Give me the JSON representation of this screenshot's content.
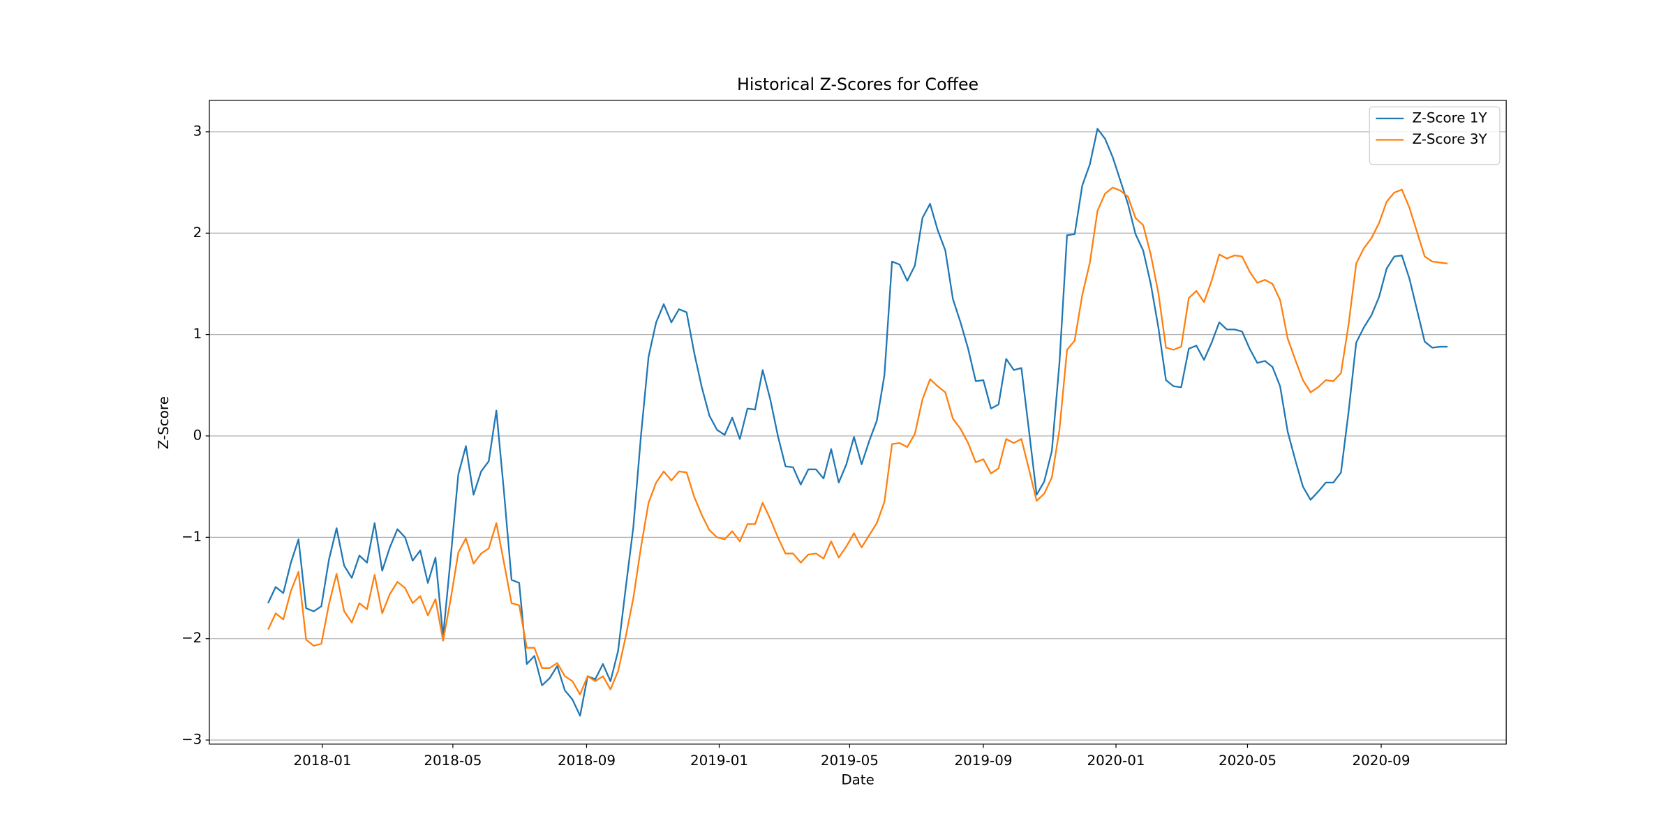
{
  "chart_data": {
    "type": "line",
    "title": "Historical Z-Scores for Coffee",
    "x_label": "Date",
    "y_label": "Z-Score",
    "x": [
      "2017-11-12",
      "2017-11-19",
      "2017-11-26",
      "2017-12-03",
      "2017-12-10",
      "2017-12-17",
      "2017-12-24",
      "2017-12-31",
      "2018-01-07",
      "2018-01-14",
      "2018-01-21",
      "2018-01-28",
      "2018-02-04",
      "2018-02-11",
      "2018-02-18",
      "2018-02-25",
      "2018-03-04",
      "2018-03-11",
      "2018-03-18",
      "2018-03-25",
      "2018-04-01",
      "2018-04-08",
      "2018-04-15",
      "2018-04-22",
      "2018-04-29",
      "2018-05-06",
      "2018-05-13",
      "2018-05-20",
      "2018-05-27",
      "2018-06-03",
      "2018-06-10",
      "2018-06-17",
      "2018-06-24",
      "2018-07-01",
      "2018-07-08",
      "2018-07-15",
      "2018-07-22",
      "2018-07-29",
      "2018-08-05",
      "2018-08-12",
      "2018-08-19",
      "2018-08-26",
      "2018-09-02",
      "2018-09-09",
      "2018-09-16",
      "2018-09-23",
      "2018-09-30",
      "2018-10-07",
      "2018-10-14",
      "2018-10-21",
      "2018-10-28",
      "2018-11-04",
      "2018-11-11",
      "2018-11-18",
      "2018-11-25",
      "2018-12-02",
      "2018-12-09",
      "2018-12-16",
      "2018-12-23",
      "2018-12-30",
      "2019-01-06",
      "2019-01-13",
      "2019-01-20",
      "2019-01-27",
      "2019-02-03",
      "2019-02-10",
      "2019-02-17",
      "2019-02-24",
      "2019-03-03",
      "2019-03-10",
      "2019-03-17",
      "2019-03-24",
      "2019-03-31",
      "2019-04-07",
      "2019-04-14",
      "2019-04-21",
      "2019-04-28",
      "2019-05-05",
      "2019-05-12",
      "2019-05-19",
      "2019-05-26",
      "2019-06-02",
      "2019-06-09",
      "2019-06-16",
      "2019-06-23",
      "2019-06-30",
      "2019-07-07",
      "2019-07-14",
      "2019-07-21",
      "2019-07-28",
      "2019-08-04",
      "2019-08-11",
      "2019-08-18",
      "2019-08-25",
      "2019-09-01",
      "2019-09-08",
      "2019-09-15",
      "2019-09-22",
      "2019-09-29",
      "2019-10-06",
      "2019-10-13",
      "2019-10-20",
      "2019-10-27",
      "2019-11-03",
      "2019-11-10",
      "2019-11-17",
      "2019-11-24",
      "2019-12-01",
      "2019-12-08",
      "2019-12-15",
      "2019-12-22",
      "2019-12-29",
      "2020-01-05",
      "2020-01-12",
      "2020-01-19",
      "2020-01-26",
      "2020-02-02",
      "2020-02-09",
      "2020-02-16",
      "2020-02-23",
      "2020-03-01",
      "2020-03-08",
      "2020-03-15",
      "2020-03-22",
      "2020-03-29",
      "2020-04-05",
      "2020-04-12",
      "2020-04-19",
      "2020-04-26",
      "2020-05-03",
      "2020-05-10",
      "2020-05-17",
      "2020-05-24",
      "2020-05-31",
      "2020-06-07",
      "2020-06-14",
      "2020-06-21",
      "2020-06-28",
      "2020-07-05",
      "2020-07-12",
      "2020-07-19",
      "2020-07-26",
      "2020-08-02",
      "2020-08-09",
      "2020-08-16",
      "2020-08-23",
      "2020-08-30",
      "2020-09-06",
      "2020-09-13",
      "2020-09-20",
      "2020-09-27",
      "2020-10-04",
      "2020-10-11",
      "2020-10-18",
      "2020-10-25",
      "2020-11-01"
    ],
    "series": [
      {
        "name": "Z-Score 1Y",
        "color": "#1f77b4",
        "values": [
          -1.65,
          -1.49,
          -1.55,
          -1.25,
          -1.02,
          -1.7,
          -1.73,
          -1.68,
          -1.22,
          -0.91,
          -1.28,
          -1.4,
          -1.18,
          -1.25,
          -0.86,
          -1.33,
          -1.1,
          -0.92,
          -1.0,
          -1.23,
          -1.13,
          -1.45,
          -1.2,
          -1.98,
          -1.2,
          -0.38,
          -0.1,
          -0.58,
          -0.35,
          -0.25,
          0.25,
          -0.55,
          -1.42,
          -1.45,
          -2.25,
          -2.17,
          -2.46,
          -2.39,
          -2.27,
          -2.51,
          -2.6,
          -2.76,
          -2.37,
          -2.4,
          -2.25,
          -2.42,
          -2.12,
          -1.5,
          -0.9,
          0.0,
          0.78,
          1.12,
          1.3,
          1.12,
          1.25,
          1.22,
          0.82,
          0.48,
          0.2,
          0.06,
          0.01,
          0.18,
          -0.03,
          0.27,
          0.26,
          0.65,
          0.36,
          0.0,
          -0.3,
          -0.31,
          -0.48,
          -0.33,
          -0.33,
          -0.42,
          -0.13,
          -0.46,
          -0.28,
          -0.01,
          -0.28,
          -0.05,
          0.15,
          0.6,
          1.72,
          1.69,
          1.53,
          1.68,
          2.15,
          2.29,
          2.03,
          1.83,
          1.35,
          1.12,
          0.86,
          0.54,
          0.55,
          0.27,
          0.31,
          0.76,
          0.65,
          0.67,
          0.05,
          -0.58,
          -0.45,
          -0.15,
          0.72,
          1.98,
          1.99,
          2.47,
          2.68,
          3.03,
          2.93,
          2.75,
          2.52,
          2.29,
          1.99,
          1.83,
          1.5,
          1.07,
          0.55,
          0.49,
          0.48,
          0.86,
          0.89,
          0.75,
          0.92,
          1.12,
          1.05,
          1.05,
          1.03,
          0.86,
          0.72,
          0.74,
          0.68,
          0.49,
          0.04,
          -0.24,
          -0.5,
          -0.63,
          -0.55,
          -0.46,
          -0.46,
          -0.36,
          0.24,
          0.92,
          1.07,
          1.19,
          1.37,
          1.65,
          1.77,
          1.78,
          1.55,
          1.24,
          0.93,
          0.87,
          0.88,
          0.88
        ]
      },
      {
        "name": "Z-Score 3Y",
        "color": "#ff7f0e",
        "values": [
          -1.91,
          -1.75,
          -1.81,
          -1.53,
          -1.34,
          -2.01,
          -2.07,
          -2.05,
          -1.66,
          -1.36,
          -1.73,
          -1.84,
          -1.65,
          -1.71,
          -1.37,
          -1.75,
          -1.56,
          -1.44,
          -1.5,
          -1.65,
          -1.58,
          -1.77,
          -1.61,
          -2.02,
          -1.61,
          -1.15,
          -1.01,
          -1.26,
          -1.16,
          -1.11,
          -0.86,
          -1.25,
          -1.65,
          -1.67,
          -2.09,
          -2.09,
          -2.29,
          -2.29,
          -2.24,
          -2.37,
          -2.42,
          -2.55,
          -2.37,
          -2.42,
          -2.37,
          -2.5,
          -2.32,
          -1.98,
          -1.6,
          -1.1,
          -0.66,
          -0.46,
          -0.35,
          -0.44,
          -0.35,
          -0.36,
          -0.6,
          -0.78,
          -0.93,
          -1.0,
          -1.02,
          -0.94,
          -1.04,
          -0.87,
          -0.87,
          -0.66,
          -0.82,
          -1.0,
          -1.16,
          -1.16,
          -1.25,
          -1.17,
          -1.16,
          -1.21,
          -1.04,
          -1.2,
          -1.09,
          -0.96,
          -1.1,
          -0.98,
          -0.86,
          -0.65,
          -0.08,
          -0.07,
          -0.11,
          0.02,
          0.36,
          0.56,
          0.49,
          0.43,
          0.17,
          0.07,
          -0.07,
          -0.26,
          -0.23,
          -0.37,
          -0.32,
          -0.03,
          -0.07,
          -0.03,
          -0.33,
          -0.64,
          -0.57,
          -0.41,
          0.06,
          0.85,
          0.94,
          1.39,
          1.71,
          2.22,
          2.39,
          2.45,
          2.42,
          2.36,
          2.15,
          2.08,
          1.79,
          1.41,
          0.87,
          0.85,
          0.88,
          1.36,
          1.43,
          1.32,
          1.53,
          1.79,
          1.75,
          1.78,
          1.77,
          1.62,
          1.51,
          1.54,
          1.5,
          1.34,
          0.96,
          0.75,
          0.55,
          0.43,
          0.48,
          0.55,
          0.54,
          0.62,
          1.1,
          1.7,
          1.85,
          1.95,
          2.1,
          2.31,
          2.4,
          2.43,
          2.25,
          2.01,
          1.77,
          1.72,
          1.71,
          1.7
        ]
      }
    ],
    "xlim": [
      "2017-09-19",
      "2020-12-25"
    ],
    "xticks": [
      "2018-01",
      "2018-05",
      "2018-09",
      "2019-01",
      "2019-05",
      "2019-09",
      "2020-01",
      "2020-05",
      "2020-09"
    ],
    "ylim": [
      -3.04,
      3.31
    ],
    "yticks": [
      {
        "value": -3,
        "label": "−3"
      },
      {
        "value": -2,
        "label": "−2"
      },
      {
        "value": -1,
        "label": "−1"
      },
      0,
      1,
      2,
      3
    ],
    "grid": "y",
    "legend": "upper right"
  }
}
